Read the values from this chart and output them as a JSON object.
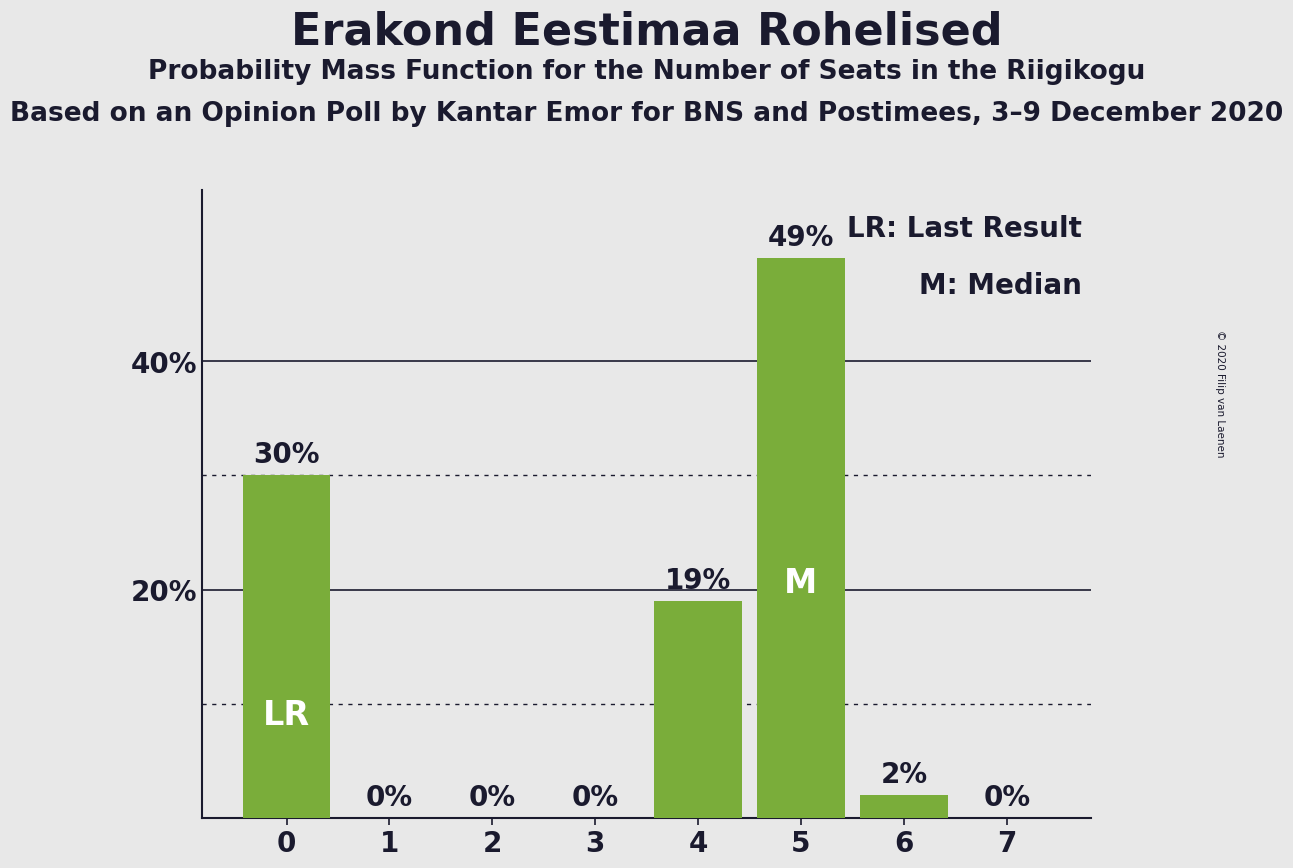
{
  "title": "Erakond Eestimaa Rohelised",
  "subtitle1": "Probability Mass Function for the Number of Seats in the Riigikogu",
  "subtitle2": "Based on an Opinion Poll by Kantar Emor for BNS and Postimees, 3–9 December 2020",
  "copyright": "© 2020 Filip van Laenen",
  "categories": [
    0,
    1,
    2,
    3,
    4,
    5,
    6,
    7
  ],
  "values": [
    30,
    0,
    0,
    0,
    19,
    49,
    2,
    0
  ],
  "bar_color": "#7aad3a",
  "background_color": "#e8e8e8",
  "yticks": [
    0,
    20,
    40
  ],
  "ytick_labels": [
    "",
    "20%",
    "40%"
  ],
  "ylim": [
    0,
    55
  ],
  "dotted_lines": [
    10,
    30
  ],
  "solid_lines": [
    20,
    40
  ],
  "lr_bar": 0,
  "median_bar": 5,
  "legend_lr": "LR: Last Result",
  "legend_m": "M: Median",
  "lr_label": "LR",
  "m_label": "M",
  "text_color": "#1a1a2e",
  "title_fontsize": 32,
  "subtitle1_fontsize": 19,
  "subtitle2_fontsize": 19,
  "bar_label_fontsize": 20,
  "axis_tick_fontsize": 20,
  "legend_fontsize": 20,
  "inside_label_fontsize": 24
}
